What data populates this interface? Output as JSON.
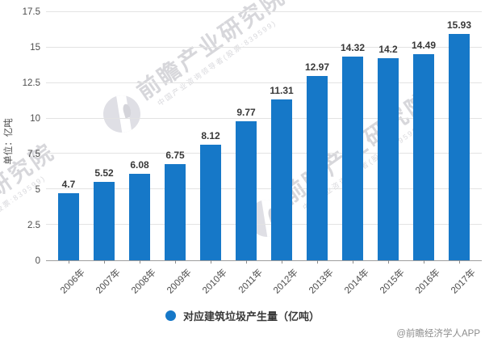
{
  "chart_data": {
    "type": "bar",
    "title": "",
    "categories": [
      "2006年",
      "2007年",
      "2008年",
      "2009年",
      "2010年",
      "2011年",
      "2012年",
      "2013年",
      "2014年",
      "2015年",
      "2016年",
      "2017年"
    ],
    "values": [
      4.7,
      5.52,
      6.08,
      6.75,
      8.12,
      9.77,
      11.31,
      12.97,
      14.32,
      14.2,
      14.49,
      15.93
    ],
    "value_labels": [
      "4.7",
      "5.52",
      "6.08",
      "6.75",
      "8.12",
      "9.77",
      "11.31",
      "12.97",
      "14.32",
      "14.2",
      "14.49",
      "15.93"
    ],
    "xlabel": "",
    "ylabel": "单位：亿吨",
    "ylim": [
      0,
      17.5
    ],
    "yticks": [
      0,
      2.5,
      5,
      7.5,
      10,
      12.5,
      15,
      17.5
    ],
    "ytick_labels": [
      "0",
      "2.5",
      "5",
      "7.5",
      "10",
      "12.5",
      "15",
      "17.5"
    ],
    "grid": true,
    "legend_position": "bottom",
    "legend": [
      {
        "label": "对应建筑垃圾产生量（亿吨）",
        "color": "#1678c8"
      }
    ],
    "bar_color": "#1678c8"
  },
  "watermark": {
    "brand": "前瞻产业研究院",
    "tagline": "中国产业咨询领导者(股票:839599)"
  },
  "footer": {
    "credit": "@前瞻经济学人APP"
  }
}
